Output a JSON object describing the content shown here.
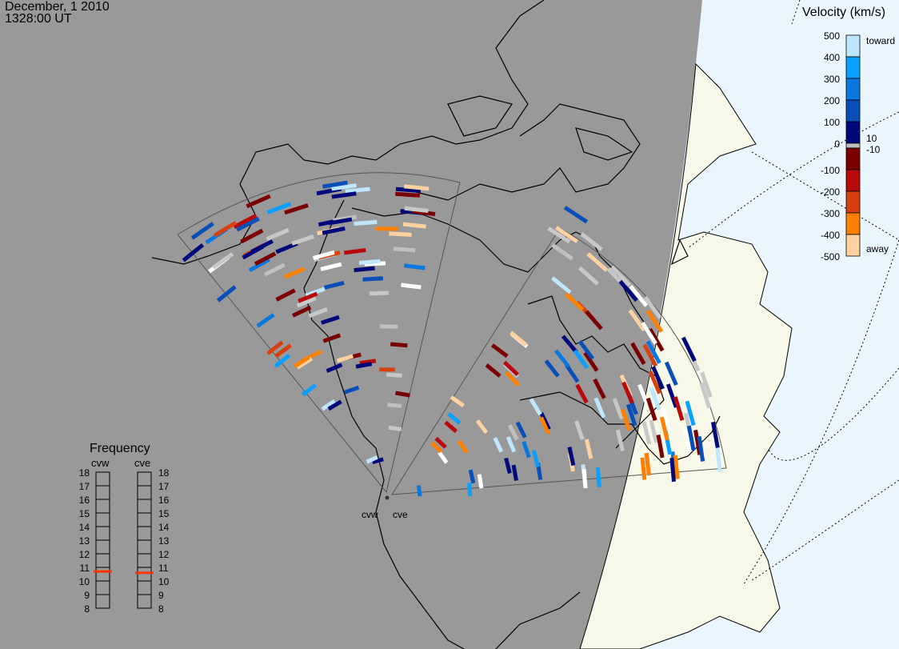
{
  "header": {
    "date": "December, 1 2010",
    "time": "1328:00 UT"
  },
  "colors": {
    "night": "#999999",
    "land_day": "#f8f8e8",
    "ocean_day": "#eaf6fd",
    "frequency_marker": "#ff3300"
  },
  "velocity_scale": {
    "title": "Velocity (km/s)",
    "ticks": [
      "500",
      "400",
      "300",
      "200",
      "100",
      "0",
      "-100",
      "-200",
      "-300",
      "-400",
      "-500"
    ],
    "inner_labels": [
      "10",
      "-10"
    ],
    "toward_label": "toward",
    "away_label": "away",
    "colors_top_to_bottom": [
      "#bfe6ff",
      "#0aa0ff",
      "#0a78e0",
      "#0a4fb8",
      "#00087a",
      "#c0c0c0",
      "#7a0000",
      "#b80a0a",
      "#d84010",
      "#ff8000",
      "#ffd0a0"
    ]
  },
  "frequency": {
    "title": "Frequency",
    "radars": [
      {
        "name": "cvw",
        "value_mhz": 10.7
      },
      {
        "name": "cve",
        "value_mhz": 10.6
      }
    ],
    "ticks": [
      "18",
      "17",
      "16",
      "15",
      "14",
      "13",
      "12",
      "11",
      "10",
      "9",
      "8"
    ]
  },
  "stations": [
    {
      "name": "cvw"
    },
    {
      "name": "cve"
    }
  ]
}
